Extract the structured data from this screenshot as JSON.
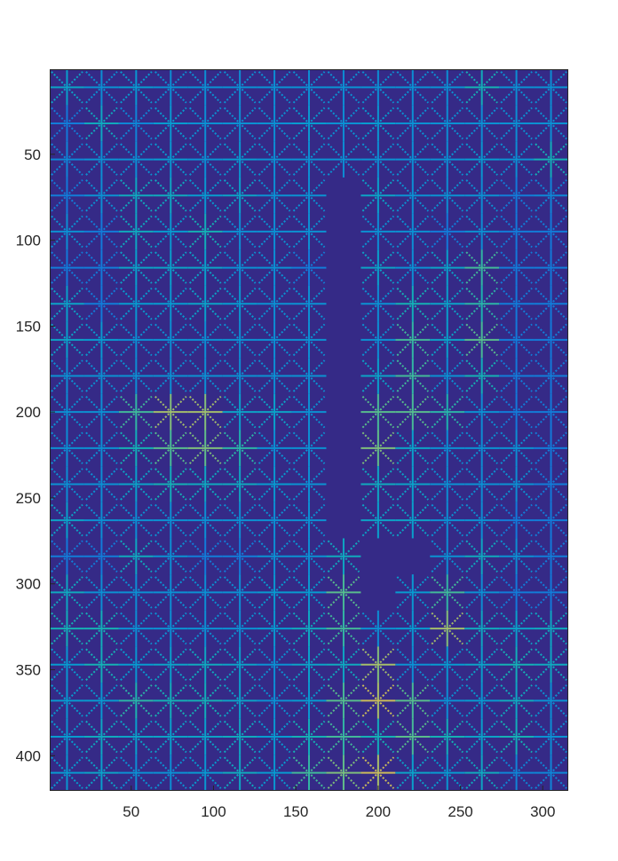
{
  "chart_data": {
    "type": "heatmap",
    "title": "",
    "xlabel": "",
    "ylabel": "",
    "xlim": [
      1,
      315
    ],
    "ylim": [
      1,
      420
    ],
    "y_reversed": true,
    "colormap": "parula",
    "background_color": "#352a87",
    "x_ticks": [
      50,
      100,
      150,
      200,
      250,
      300
    ],
    "x_tick_labels": [
      "50",
      "100",
      "150",
      "200",
      "250",
      "300"
    ],
    "y_ticks": [
      50,
      100,
      150,
      200,
      250,
      300,
      350,
      400
    ],
    "y_tick_labels": [
      "50",
      "100",
      "150",
      "200",
      "250",
      "300",
      "350",
      "400"
    ],
    "grid_spacing": 21,
    "grid_x_centers": [
      11,
      32,
      53,
      74,
      95,
      116,
      137,
      158,
      179,
      200,
      221,
      242,
      263,
      284,
      305
    ],
    "grid_y_centers": [
      11,
      32,
      53,
      74,
      95,
      116,
      137,
      158,
      179,
      200,
      221,
      242,
      263,
      284,
      305,
      326,
      347,
      368,
      389,
      410
    ],
    "star_intensity": [
      [
        0.5,
        0.4,
        0.45,
        0.4,
        0.4,
        0.4,
        0.4,
        0.4,
        0.4,
        0.4,
        0.4,
        0.4,
        0.6,
        0.4,
        0.4
      ],
      [
        0.3,
        0.55,
        0.35,
        0.45,
        0.4,
        0.4,
        0.4,
        0.45,
        0.4,
        0.45,
        0.4,
        0.4,
        0.4,
        0.4,
        0.4
      ],
      [
        0.35,
        0.4,
        0.4,
        0.45,
        0.4,
        0.45,
        0.4,
        0.4,
        0.4,
        0.4,
        0.4,
        0.4,
        0.45,
        0.4,
        0.6
      ],
      [
        0.3,
        0.4,
        0.55,
        0.55,
        0.45,
        0.5,
        0.4,
        0.4,
        0.0,
        0.5,
        0.4,
        0.4,
        0.4,
        0.3,
        0.35
      ],
      [
        0.4,
        0.3,
        0.55,
        0.45,
        0.6,
        0.4,
        0.4,
        0.4,
        0.0,
        0.4,
        0.4,
        0.3,
        0.4,
        0.3,
        0.3
      ],
      [
        0.3,
        0.3,
        0.5,
        0.5,
        0.5,
        0.4,
        0.4,
        0.3,
        0.0,
        0.5,
        0.4,
        0.5,
        0.7,
        0.3,
        0.3
      ],
      [
        0.5,
        0.3,
        0.45,
        0.45,
        0.5,
        0.45,
        0.4,
        0.4,
        0.0,
        0.4,
        0.6,
        0.5,
        0.65,
        0.3,
        0.3
      ],
      [
        0.5,
        0.45,
        0.4,
        0.4,
        0.4,
        0.4,
        0.4,
        0.4,
        0.0,
        0.4,
        0.7,
        0.5,
        0.75,
        0.3,
        0.3
      ],
      [
        0.4,
        0.4,
        0.4,
        0.4,
        0.4,
        0.4,
        0.4,
        0.4,
        0.0,
        0.5,
        0.7,
        0.4,
        0.6,
        0.3,
        0.3
      ],
      [
        0.4,
        0.4,
        0.7,
        0.85,
        0.85,
        0.5,
        0.5,
        0.4,
        0.0,
        0.75,
        0.75,
        0.65,
        0.4,
        0.3,
        0.3
      ],
      [
        0.4,
        0.4,
        0.6,
        0.75,
        0.8,
        0.65,
        0.4,
        0.4,
        0.0,
        0.8,
        0.5,
        0.4,
        0.4,
        0.4,
        0.3
      ],
      [
        0.4,
        0.4,
        0.5,
        0.6,
        0.55,
        0.55,
        0.45,
        0.4,
        0.0,
        0.55,
        0.5,
        0.4,
        0.4,
        0.4,
        0.3
      ],
      [
        0.5,
        0.4,
        0.4,
        0.4,
        0.4,
        0.4,
        0.4,
        0.4,
        0.0,
        0.5,
        0.5,
        0.4,
        0.4,
        0.3,
        0.3
      ],
      [
        0.3,
        0.3,
        0.55,
        0.4,
        0.3,
        0.3,
        0.4,
        0.4,
        0.55,
        0.0,
        0.0,
        0.4,
        0.55,
        0.4,
        0.3
      ],
      [
        0.55,
        0.4,
        0.4,
        0.4,
        0.4,
        0.4,
        0.45,
        0.45,
        0.75,
        0.0,
        0.45,
        0.7,
        0.4,
        0.3,
        0.3
      ],
      [
        0.6,
        0.6,
        0.4,
        0.4,
        0.4,
        0.4,
        0.45,
        0.55,
        0.7,
        0.4,
        0.45,
        0.85,
        0.55,
        0.5,
        0.55
      ],
      [
        0.45,
        0.6,
        0.45,
        0.5,
        0.55,
        0.5,
        0.4,
        0.5,
        0.55,
        0.85,
        0.4,
        0.45,
        0.5,
        0.6,
        0.55
      ],
      [
        0.45,
        0.45,
        0.65,
        0.6,
        0.6,
        0.5,
        0.4,
        0.45,
        0.75,
        0.9,
        0.75,
        0.4,
        0.45,
        0.55,
        0.4
      ],
      [
        0.45,
        0.55,
        0.5,
        0.5,
        0.5,
        0.55,
        0.45,
        0.6,
        0.7,
        0.6,
        0.75,
        0.6,
        0.5,
        0.6,
        0.4
      ],
      [
        0.45,
        0.5,
        0.4,
        0.4,
        0.45,
        0.55,
        0.45,
        0.7,
        0.8,
        0.9,
        0.5,
        0.45,
        0.55,
        0.35,
        0.35
      ]
    ]
  }
}
